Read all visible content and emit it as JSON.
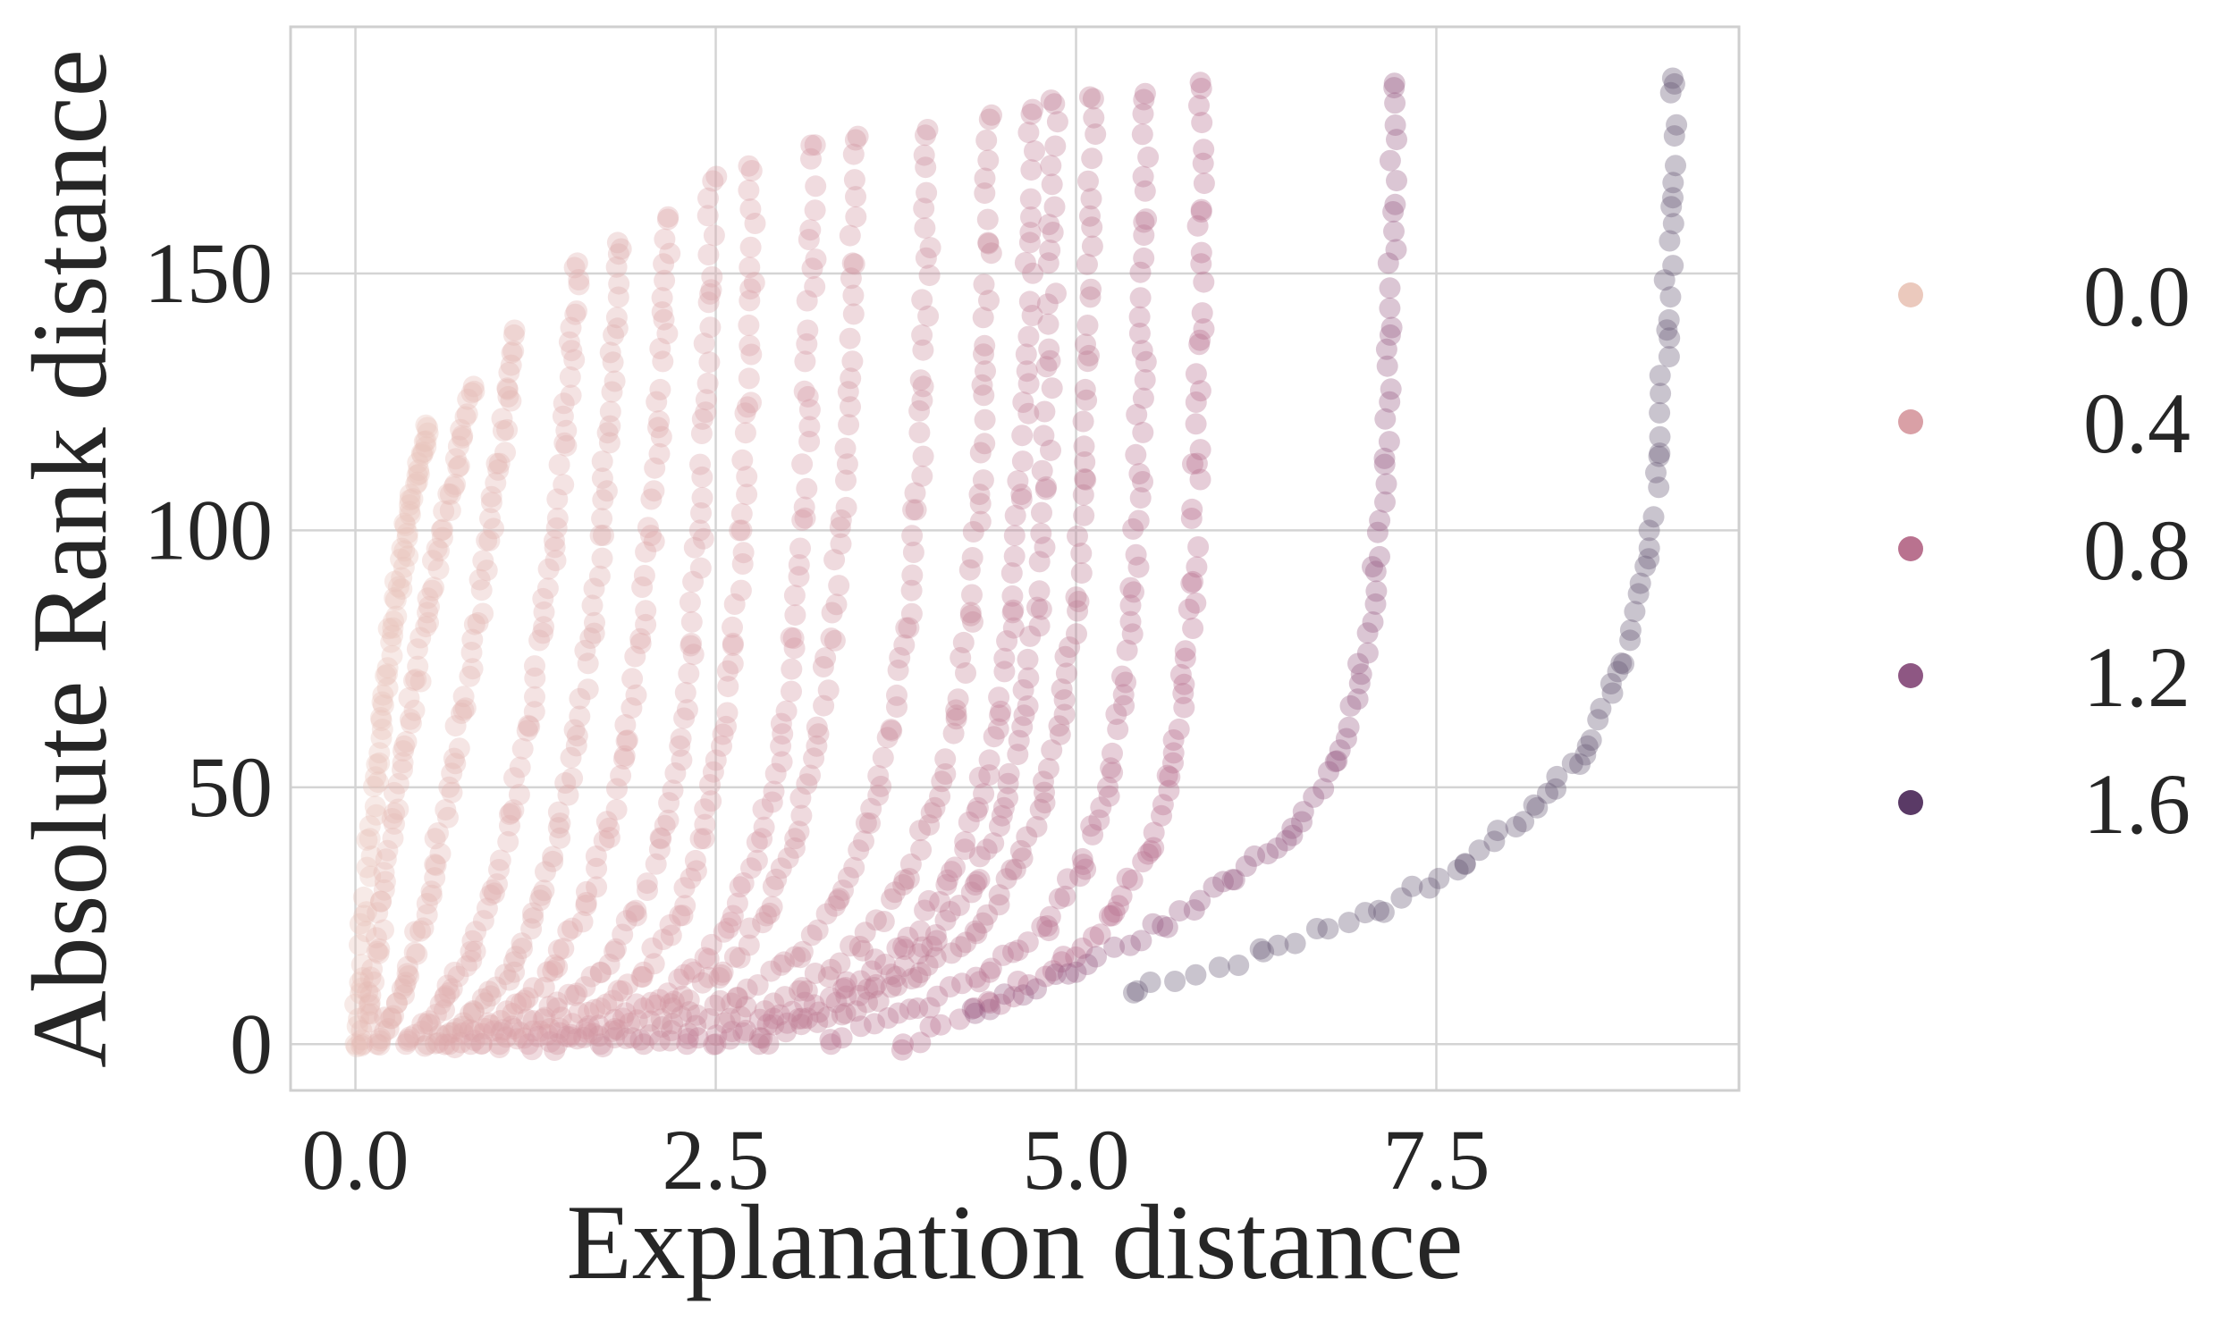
{
  "chart_data": {
    "type": "scatter",
    "title": "",
    "xlabel": "Explanation distance",
    "ylabel": "Absolute Rank distance",
    "xlim": [
      -0.45,
      9.6
    ],
    "ylim": [
      -9,
      198
    ],
    "xticks": [
      0.0,
      2.5,
      5.0,
      7.5
    ],
    "xtick_labels": [
      "0.0",
      "2.5",
      "5.0",
      "7.5"
    ],
    "yticks": [
      0,
      50,
      100,
      150
    ],
    "ytick_labels": [
      "0",
      "50",
      "100",
      "150"
    ],
    "grid": true,
    "legend": {
      "placement": "right",
      "entries": [
        {
          "label": "0.0",
          "color": "#ebc9bd"
        },
        {
          "label": "0.4",
          "color": "#d9a0a6"
        },
        {
          "label": "0.8",
          "color": "#b9728f"
        },
        {
          "label": "1.2",
          "color": "#8e5783"
        },
        {
          "label": "1.6",
          "color": "#5a3a66"
        }
      ]
    },
    "marker_alpha": 0.35,
    "series": [
      {
        "hue": 0.05,
        "ymax": 120,
        "x": [
          0.0,
          0.03,
          0.06,
          0.1,
          0.14,
          0.18,
          0.22,
          0.26,
          0.3,
          0.34,
          0.38,
          0.42,
          0.46,
          0.5
        ],
        "y": [
          0,
          12,
          25,
          40,
          52,
          63,
          72,
          81,
          89,
          96,
          103,
          109,
          115,
          120
        ]
      },
      {
        "hue": 0.1,
        "ymax": 128,
        "x": [
          0.05,
          0.1,
          0.15,
          0.2,
          0.27,
          0.34,
          0.42,
          0.5,
          0.58,
          0.66,
          0.74,
          0.82
        ],
        "y": [
          0,
          8,
          18,
          30,
          45,
          58,
          71,
          84,
          96,
          107,
          118,
          128
        ]
      },
      {
        "hue": 0.15,
        "ymax": 138,
        "x": [
          0.15,
          0.25,
          0.35,
          0.45,
          0.55,
          0.65,
          0.75,
          0.85,
          0.93,
          1.0,
          1.06,
          1.1
        ],
        "y": [
          0,
          5,
          12,
          22,
          35,
          50,
          65,
          82,
          98,
          113,
          126,
          138
        ]
      },
      {
        "hue": 0.2,
        "ymax": 152,
        "x": [
          0.35,
          0.5,
          0.65,
          0.8,
          0.95,
          1.08,
          1.2,
          1.3,
          1.38,
          1.45,
          1.5,
          1.54
        ],
        "y": [
          0,
          4,
          10,
          18,
          30,
          45,
          62,
          80,
          98,
          117,
          135,
          152
        ]
      },
      {
        "hue": 0.22,
        "ymax": 156,
        "x": [
          0.5,
          0.7,
          0.9,
          1.1,
          1.28,
          1.42,
          1.54,
          1.63,
          1.7,
          1.75,
          1.79,
          1.82
        ],
        "y": [
          0,
          3,
          8,
          16,
          28,
          43,
          60,
          79,
          99,
          119,
          138,
          156
        ]
      },
      {
        "hue": 0.25,
        "ymax": 161,
        "x": [
          0.65,
          0.9,
          1.15,
          1.4,
          1.6,
          1.76,
          1.88,
          1.98,
          2.05,
          2.1,
          2.14,
          2.17
        ],
        "y": [
          0,
          3,
          8,
          15,
          27,
          42,
          59,
          78,
          99,
          120,
          141,
          161
        ]
      },
      {
        "hue": 0.28,
        "ymax": 168,
        "x": [
          0.8,
          1.1,
          1.4,
          1.7,
          1.95,
          2.12,
          2.25,
          2.33,
          2.39,
          2.43,
          2.46,
          2.48
        ],
        "y": [
          0,
          3,
          7,
          14,
          25,
          40,
          58,
          78,
          100,
          123,
          146,
          168
        ]
      },
      {
        "hue": 0.3,
        "ymax": 170,
        "x": [
          1.0,
          1.35,
          1.7,
          2.0,
          2.25,
          2.42,
          2.54,
          2.62,
          2.68,
          2.72,
          2.74,
          2.75
        ],
        "y": [
          0,
          3,
          7,
          14,
          25,
          40,
          58,
          78,
          100,
          124,
          147,
          170
        ]
      },
      {
        "hue": 0.35,
        "ymax": 175,
        "x": [
          1.2,
          1.6,
          2.0,
          2.35,
          2.62,
          2.82,
          2.95,
          3.04,
          3.1,
          3.14,
          3.17,
          3.19
        ],
        "y": [
          0,
          3,
          7,
          14,
          25,
          40,
          58,
          79,
          102,
          126,
          151,
          175
        ]
      },
      {
        "hue": 0.38,
        "ymax": 176,
        "x": [
          1.4,
          1.8,
          2.2,
          2.55,
          2.85,
          3.05,
          3.2,
          3.3,
          3.37,
          3.42,
          3.45,
          3.47
        ],
        "y": [
          0,
          3,
          7,
          14,
          25,
          40,
          58,
          79,
          102,
          127,
          152,
          176
        ]
      },
      {
        "hue": 0.42,
        "ymax": 178,
        "x": [
          1.7,
          2.2,
          2.65,
          3.05,
          3.35,
          3.57,
          3.72,
          3.82,
          3.89,
          3.94,
          3.96,
          3.97
        ],
        "y": [
          0,
          4,
          9,
          17,
          28,
          43,
          61,
          81,
          104,
          128,
          153,
          178
        ]
      },
      {
        "hue": 0.47,
        "ymax": 180,
        "x": [
          2.0,
          2.6,
          3.1,
          3.5,
          3.8,
          4.02,
          4.17,
          4.27,
          4.33,
          4.37,
          4.39,
          4.4
        ],
        "y": [
          0,
          5,
          11,
          19,
          31,
          46,
          64,
          84,
          107,
          131,
          156,
          180
        ]
      },
      {
        "hue": 0.5,
        "ymax": 181,
        "x": [
          2.3,
          2.9,
          3.4,
          3.8,
          4.1,
          4.32,
          4.47,
          4.56,
          4.62,
          4.66,
          4.68,
          4.69
        ],
        "y": [
          0,
          5,
          11,
          19,
          31,
          46,
          64,
          84,
          107,
          131,
          156,
          181
        ]
      },
      {
        "hue": 0.53,
        "ymax": 183,
        "x": [
          2.5,
          3.1,
          3.6,
          4.0,
          4.3,
          4.5,
          4.64,
          4.73,
          4.79,
          4.82,
          4.84,
          4.85
        ],
        "y": [
          0,
          5,
          11,
          19,
          31,
          46,
          64,
          85,
          108,
          133,
          158,
          183
        ]
      },
      {
        "hue": 0.55,
        "ymax": 184,
        "x": [
          2.8,
          3.4,
          3.9,
          4.3,
          4.58,
          4.78,
          4.92,
          5.0,
          5.06,
          5.09,
          5.11,
          5.12
        ],
        "y": [
          0,
          6,
          13,
          22,
          34,
          49,
          67,
          87,
          110,
          134,
          159,
          184
        ]
      },
      {
        "hue": 0.58,
        "ymax": 185,
        "x": [
          3.3,
          3.9,
          4.4,
          4.8,
          5.05,
          5.22,
          5.33,
          5.4,
          5.44,
          5.46,
          5.47,
          5.48
        ],
        "y": [
          0,
          7,
          14,
          23,
          35,
          50,
          68,
          88,
          111,
          135,
          160,
          185
        ]
      },
      {
        "hue": 0.62,
        "ymax": 186,
        "x": [
          3.8,
          4.4,
          4.9,
          5.25,
          5.5,
          5.65,
          5.75,
          5.81,
          5.84,
          5.86,
          5.87,
          5.87
        ],
        "y": [
          0,
          8,
          16,
          25,
          37,
          52,
          70,
          90,
          113,
          137,
          162,
          186
        ]
      },
      {
        "hue": 0.8,
        "ymax": 187,
        "x": [
          4.3,
          5.0,
          5.6,
          6.1,
          6.5,
          6.8,
          6.98,
          7.08,
          7.14,
          7.18,
          7.2,
          7.21
        ],
        "y": [
          6,
          14,
          23,
          32,
          42,
          55,
          72,
          92,
          114,
          138,
          162,
          187
        ]
      },
      {
        "hue": 1.0,
        "ymax": 188,
        "x": [
          5.4,
          6.3,
          7.1,
          7.7,
          8.2,
          8.55,
          8.8,
          8.95,
          9.05,
          9.1,
          9.13,
          9.14
        ],
        "y": [
          10,
          18,
          26,
          35,
          46,
          58,
          74,
          93,
          115,
          139,
          163,
          188
        ]
      }
    ]
  }
}
